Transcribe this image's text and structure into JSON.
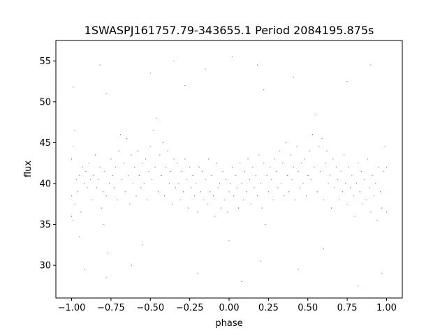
{
  "chart_data": {
    "type": "scatter",
    "title": "1SWASPJ161757.79-343655.1 Period 2084195.875s",
    "xlabel": "phase",
    "ylabel": "flux",
    "xlim": [
      -1.1,
      1.1
    ],
    "ylim": [
      26.0,
      57.5
    ],
    "xticks": [
      {
        "value": -1.0,
        "label": "−1.00"
      },
      {
        "value": -0.75,
        "label": "−0.75"
      },
      {
        "value": -0.5,
        "label": "−0.50"
      },
      {
        "value": -0.25,
        "label": "−0.25"
      },
      {
        "value": 0.0,
        "label": "0.00"
      },
      {
        "value": 0.25,
        "label": "0.25"
      },
      {
        "value": 0.5,
        "label": "0.50"
      },
      {
        "value": 0.75,
        "label": "0.75"
      },
      {
        "value": 1.0,
        "label": "1.00"
      }
    ],
    "yticks": [
      {
        "value": 30,
        "label": "30"
      },
      {
        "value": 35,
        "label": "35"
      },
      {
        "value": 40,
        "label": "40"
      },
      {
        "value": 45,
        "label": "45"
      },
      {
        "value": 50,
        "label": "50"
      },
      {
        "value": 55,
        "label": "55"
      }
    ],
    "grid": false,
    "color": "#1f77b4",
    "point_size": 0.6,
    "series": [
      {
        "points": [
          [
            -1.0,
            36.0
          ],
          [
            -1.0,
            38.5
          ],
          [
            -1.0,
            43.0
          ],
          [
            -0.99,
            35.5
          ],
          [
            -0.99,
            44.5
          ],
          [
            -0.99,
            51.8
          ],
          [
            -0.98,
            37.5
          ],
          [
            -0.98,
            46.5
          ],
          [
            -0.97,
            40.5
          ],
          [
            -0.96,
            39.0
          ],
          [
            -0.95,
            41.0
          ],
          [
            -0.94,
            36.5
          ],
          [
            -0.93,
            42.0
          ],
          [
            -0.92,
            40.0
          ],
          [
            -0.91,
            41.5
          ],
          [
            -0.9,
            39.5
          ],
          [
            -0.89,
            42.5
          ],
          [
            -0.88,
            40.5
          ],
          [
            -0.87,
            38.0
          ],
          [
            -0.86,
            41.0
          ],
          [
            -0.85,
            43.5
          ],
          [
            -0.84,
            39.5
          ],
          [
            -0.83,
            40.5
          ],
          [
            -0.82,
            42.0
          ],
          [
            -0.81,
            37.0
          ],
          [
            -0.8,
            39.0
          ],
          [
            -0.8,
            35.0
          ],
          [
            -0.79,
            41.5
          ],
          [
            -0.78,
            38.5
          ],
          [
            -0.77,
            31.5
          ],
          [
            -0.76,
            40.0
          ],
          [
            -0.75,
            43.0
          ],
          [
            -0.74,
            41.0
          ],
          [
            -0.73,
            39.5
          ],
          [
            -0.72,
            42.0
          ],
          [
            -0.71,
            38.0
          ],
          [
            -0.7,
            44.0
          ],
          [
            -0.69,
            46.0
          ],
          [
            -0.68,
            40.5
          ],
          [
            -0.67,
            42.5
          ],
          [
            -0.66,
            39.0
          ],
          [
            -0.65,
            45.5
          ],
          [
            -0.64,
            41.0
          ],
          [
            -0.63,
            37.5
          ],
          [
            -0.62,
            43.5
          ],
          [
            -0.61,
            40.0
          ],
          [
            -0.6,
            42.0
          ],
          [
            -0.59,
            38.5
          ],
          [
            -0.58,
            44.0
          ],
          [
            -0.57,
            41.0
          ],
          [
            -0.56,
            39.5
          ],
          [
            -0.55,
            42.5
          ],
          [
            -0.54,
            40.0
          ],
          [
            -0.53,
            43.0
          ],
          [
            -0.52,
            38.0
          ],
          [
            -0.51,
            41.5
          ],
          [
            -0.5,
            44.5
          ],
          [
            -0.49,
            40.5
          ],
          [
            -0.48,
            46.5
          ],
          [
            -0.47,
            42.0
          ],
          [
            -0.46,
            48.0
          ],
          [
            -0.45,
            39.0
          ],
          [
            -0.44,
            43.5
          ],
          [
            -0.43,
            41.0
          ],
          [
            -0.42,
            45.0
          ],
          [
            -0.41,
            38.5
          ],
          [
            -0.4,
            42.0
          ],
          [
            -0.39,
            44.0
          ],
          [
            -0.38,
            40.0
          ],
          [
            -0.37,
            41.5
          ],
          [
            -0.36,
            37.5
          ],
          [
            -0.35,
            43.0
          ],
          [
            -0.34,
            39.5
          ],
          [
            -0.33,
            42.5
          ],
          [
            -0.32,
            40.0
          ],
          [
            -0.31,
            38.0
          ],
          [
            -0.3,
            41.5
          ],
          [
            -0.29,
            39.0
          ],
          [
            -0.28,
            43.0
          ],
          [
            -0.27,
            40.5
          ],
          [
            -0.26,
            37.0
          ],
          [
            -0.25,
            42.0
          ],
          [
            -0.24,
            39.5
          ],
          [
            -0.23,
            41.0
          ],
          [
            -0.22,
            38.5
          ],
          [
            -0.21,
            40.0
          ],
          [
            -0.2,
            36.5
          ],
          [
            -0.19,
            42.0
          ],
          [
            -0.18,
            39.0
          ],
          [
            -0.17,
            41.5
          ],
          [
            -0.16,
            38.0
          ],
          [
            -0.15,
            40.5
          ],
          [
            -0.14,
            37.5
          ],
          [
            -0.13,
            43.0
          ],
          [
            -0.12,
            39.0
          ],
          [
            -0.11,
            41.0
          ],
          [
            -0.1,
            38.5
          ],
          [
            -0.09,
            36.0
          ],
          [
            -0.08,
            42.5
          ],
          [
            -0.07,
            39.5
          ],
          [
            -0.06,
            40.0
          ],
          [
            -0.05,
            37.0
          ],
          [
            -0.04,
            41.5
          ],
          [
            -0.03,
            38.0
          ],
          [
            -0.02,
            40.5
          ],
          [
            -0.01,
            36.5
          ],
          [
            0.0,
            39.0
          ],
          [
            0.0,
            33.0
          ],
          [
            0.01,
            40.0
          ],
          [
            0.02,
            42.0
          ],
          [
            0.03,
            38.5
          ],
          [
            0.04,
            41.0
          ],
          [
            0.05,
            39.5
          ],
          [
            0.06,
            37.0
          ],
          [
            0.07,
            42.5
          ],
          [
            0.08,
            40.0
          ],
          [
            0.09,
            38.0
          ],
          [
            0.1,
            41.5
          ],
          [
            0.11,
            39.0
          ],
          [
            0.12,
            43.0
          ],
          [
            0.13,
            40.5
          ],
          [
            0.14,
            37.5
          ],
          [
            0.15,
            42.0
          ],
          [
            0.16,
            39.5
          ],
          [
            0.17,
            41.0
          ],
          [
            0.18,
            38.5
          ],
          [
            0.19,
            43.5
          ],
          [
            0.2,
            40.0
          ],
          [
            0.21,
            37.0
          ],
          [
            0.22,
            42.5
          ],
          [
            0.23,
            35.0
          ],
          [
            0.24,
            41.0
          ],
          [
            0.25,
            39.0
          ],
          [
            0.26,
            42.0
          ],
          [
            0.27,
            40.5
          ],
          [
            0.28,
            38.0
          ],
          [
            0.29,
            43.0
          ],
          [
            0.3,
            41.5
          ],
          [
            0.31,
            39.5
          ],
          [
            0.32,
            44.0
          ],
          [
            0.33,
            40.0
          ],
          [
            0.34,
            42.5
          ],
          [
            0.35,
            38.5
          ],
          [
            0.36,
            45.0
          ],
          [
            0.37,
            41.0
          ],
          [
            0.38,
            39.0
          ],
          [
            0.39,
            43.5
          ],
          [
            0.4,
            40.5
          ],
          [
            0.41,
            42.0
          ],
          [
            0.42,
            38.0
          ],
          [
            0.43,
            44.5
          ],
          [
            0.44,
            41.5
          ],
          [
            0.45,
            39.5
          ],
          [
            0.46,
            42.5
          ],
          [
            0.47,
            40.0
          ],
          [
            0.48,
            43.0
          ],
          [
            0.49,
            38.5
          ],
          [
            0.5,
            41.0
          ],
          [
            0.51,
            44.0
          ],
          [
            0.52,
            40.5
          ],
          [
            0.53,
            46.0
          ],
          [
            0.54,
            42.0
          ],
          [
            0.55,
            48.5
          ],
          [
            0.56,
            39.0
          ],
          [
            0.57,
            44.5
          ],
          [
            0.58,
            41.5
          ],
          [
            0.59,
            45.5
          ],
          [
            0.6,
            38.0
          ],
          [
            0.61,
            42.5
          ],
          [
            0.62,
            44.0
          ],
          [
            0.63,
            40.0
          ],
          [
            0.64,
            41.0
          ],
          [
            0.65,
            37.0
          ],
          [
            0.66,
            43.0
          ],
          [
            0.67,
            39.5
          ],
          [
            0.68,
            42.0
          ],
          [
            0.69,
            40.5
          ],
          [
            0.7,
            38.0
          ],
          [
            0.71,
            41.5
          ],
          [
            0.72,
            39.0
          ],
          [
            0.73,
            43.5
          ],
          [
            0.74,
            40.0
          ],
          [
            0.75,
            37.5
          ],
          [
            0.76,
            42.0
          ],
          [
            0.77,
            39.5
          ],
          [
            0.78,
            41.0
          ],
          [
            0.79,
            38.5
          ],
          [
            0.8,
            36.0
          ],
          [
            0.81,
            40.0
          ],
          [
            0.82,
            42.5
          ],
          [
            0.83,
            39.0
          ],
          [
            0.84,
            41.5
          ],
          [
            0.85,
            37.5
          ],
          [
            0.86,
            40.5
          ],
          [
            0.87,
            38.0
          ],
          [
            0.88,
            43.0
          ],
          [
            0.89,
            39.5
          ],
          [
            0.9,
            36.5
          ],
          [
            0.91,
            41.0
          ],
          [
            0.92,
            38.5
          ],
          [
            0.93,
            40.0
          ],
          [
            0.94,
            35.5
          ],
          [
            0.95,
            42.0
          ],
          [
            0.96,
            39.0
          ],
          [
            0.97,
            37.0
          ],
          [
            0.98,
            41.5
          ],
          [
            0.99,
            44.5
          ],
          [
            1.0,
            36.5
          ],
          [
            1.0,
            42.0
          ],
          [
            -0.82,
            54.5
          ],
          [
            -0.78,
            51.0
          ],
          [
            -0.5,
            53.5
          ],
          [
            -0.28,
            52.0
          ],
          [
            -0.15,
            54.0
          ],
          [
            0.18,
            54.5
          ],
          [
            0.22,
            51.5
          ],
          [
            0.41,
            53.0
          ],
          [
            0.75,
            52.5
          ],
          [
            0.9,
            54.5
          ],
          [
            0.02,
            55.5
          ],
          [
            -0.35,
            55.0
          ],
          [
            -0.92,
            29.5
          ],
          [
            -0.78,
            28.5
          ],
          [
            -0.62,
            30.0
          ],
          [
            -0.2,
            29.0
          ],
          [
            0.08,
            28.0
          ],
          [
            0.2,
            30.5
          ],
          [
            0.44,
            29.5
          ],
          [
            0.82,
            27.5
          ],
          [
            0.97,
            29.0
          ],
          [
            -0.95,
            33.5
          ],
          [
            0.6,
            32.0
          ],
          [
            -0.55,
            32.5
          ]
        ]
      }
    ]
  }
}
